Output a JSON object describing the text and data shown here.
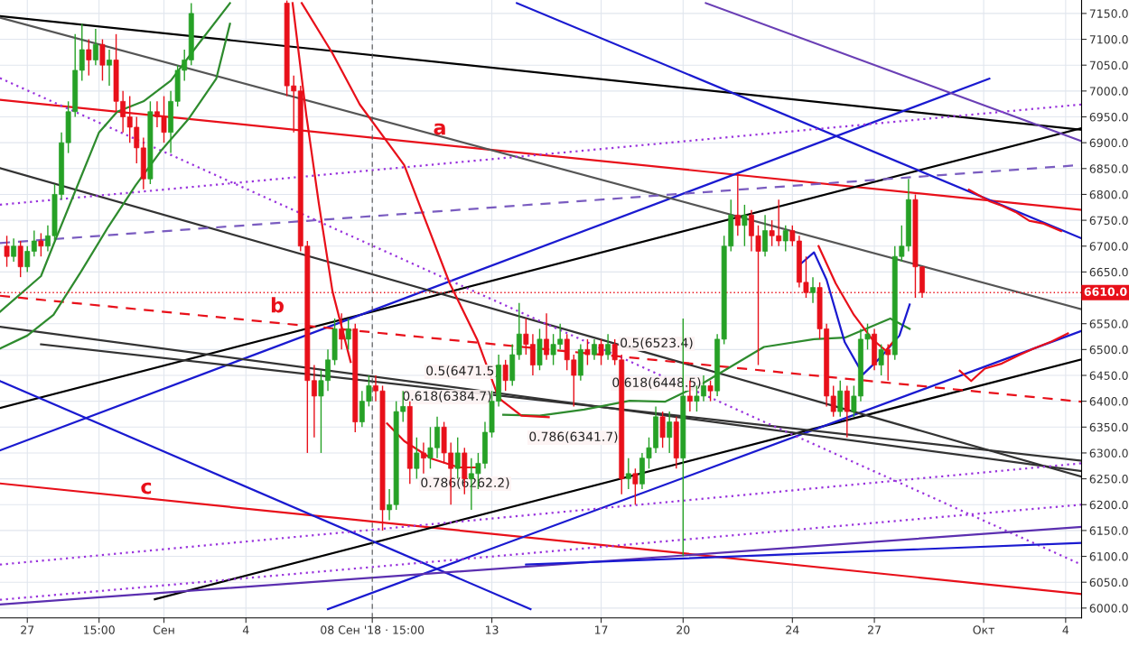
{
  "chart_data": {
    "type": "candlestick",
    "x": [
      "2018-08-26T06:00",
      "2018-08-26T12:00",
      "2018-08-26T18:00",
      "2018-08-27T00:00",
      "2018-08-27T06:00",
      "2018-08-27T12:00",
      "2018-08-27T18:00",
      "2018-08-28T00:00",
      "2018-08-28T06:00",
      "2018-08-28T12:00",
      "2018-08-28T18:00",
      "2018-08-29T00:00",
      "2018-08-29T06:00",
      "2018-08-29T12:00",
      "2018-08-29T18:00",
      "2018-08-30T00:00",
      "2018-08-30T06:00",
      "2018-08-30T12:00",
      "2018-08-30T18:00",
      "2018-08-31T00:00",
      "2018-08-31T06:00",
      "2018-08-31T12:00",
      "2018-08-31T18:00",
      "2018-09-01T00:00",
      "2018-09-01T06:00",
      "2018-09-01T12:00",
      "2018-09-01T18:00",
      "2018-09-02T00:00",
      "2018-09-05T12:00",
      "2018-09-05T18:00",
      "2018-09-06T00:00",
      "2018-09-06T06:00",
      "2018-09-06T12:00",
      "2018-09-06T18:00",
      "2018-09-07T00:00",
      "2018-09-07T06:00",
      "2018-09-07T12:00",
      "2018-09-07T18:00",
      "2018-09-08T00:00",
      "2018-09-08T06:00",
      "2018-09-08T12:00",
      "2018-09-08T18:00",
      "2018-09-09T00:00",
      "2018-09-09T06:00",
      "2018-09-09T12:00",
      "2018-09-09T18:00",
      "2018-09-10T00:00",
      "2018-09-10T06:00",
      "2018-09-10T12:00",
      "2018-09-10T18:00",
      "2018-09-11T00:00",
      "2018-09-11T06:00",
      "2018-09-11T12:00",
      "2018-09-11T18:00",
      "2018-09-12T00:00",
      "2018-09-12T06:00",
      "2018-09-12T12:00",
      "2018-09-12T18:00",
      "2018-09-13T00:00",
      "2018-09-13T06:00",
      "2018-09-13T12:00",
      "2018-09-13T18:00",
      "2018-09-14T00:00",
      "2018-09-14T06:00",
      "2018-09-14T12:00",
      "2018-09-14T18:00",
      "2018-09-15T00:00",
      "2018-09-15T06:00",
      "2018-09-15T12:00",
      "2018-09-15T18:00",
      "2018-09-16T00:00",
      "2018-09-16T06:00",
      "2018-09-16T12:00",
      "2018-09-16T18:00",
      "2018-09-17T00:00",
      "2018-09-17T06:00",
      "2018-09-17T12:00",
      "2018-09-17T18:00",
      "2018-09-18T00:00",
      "2018-09-18T06:00",
      "2018-09-18T12:00",
      "2018-09-18T18:00",
      "2018-09-19T00:00",
      "2018-09-19T06:00",
      "2018-09-19T12:00",
      "2018-09-19T18:00",
      "2018-09-20T00:00",
      "2018-09-20T06:00",
      "2018-09-20T12:00",
      "2018-09-20T18:00",
      "2018-09-21T00:00",
      "2018-09-21T06:00",
      "2018-09-21T12:00",
      "2018-09-21T18:00",
      "2018-09-22T00:00",
      "2018-09-22T06:00",
      "2018-09-22T12:00",
      "2018-09-22T18:00",
      "2018-09-23T00:00",
      "2018-09-23T06:00",
      "2018-09-23T12:00",
      "2018-09-23T18:00",
      "2018-09-24T00:00",
      "2018-09-24T06:00",
      "2018-09-24T12:00",
      "2018-09-24T18:00",
      "2018-09-25T00:00",
      "2018-09-25T06:00",
      "2018-09-25T12:00",
      "2018-09-25T18:00",
      "2018-09-26T00:00",
      "2018-09-26T06:00",
      "2018-09-26T12:00",
      "2018-09-26T18:00",
      "2018-09-27T00:00",
      "2018-09-27T06:00",
      "2018-09-27T12:00",
      "2018-09-27T18:00",
      "2018-09-28T00:00",
      "2018-09-28T06:00",
      "2018-09-28T12:00",
      "2018-09-28T18:00"
    ],
    "ohlc": [
      [
        6700,
        6720,
        6660,
        6680
      ],
      [
        6680,
        6715,
        6670,
        6700
      ],
      [
        6700,
        6710,
        6640,
        6660
      ],
      [
        6660,
        6700,
        6650,
        6690
      ],
      [
        6690,
        6730,
        6680,
        6710
      ],
      [
        6710,
        6725,
        6680,
        6700
      ],
      [
        6700,
        6740,
        6690,
        6720
      ],
      [
        6720,
        6820,
        6710,
        6800
      ],
      [
        6800,
        6920,
        6790,
        6900
      ],
      [
        6900,
        6980,
        6880,
        6960
      ],
      [
        6960,
        7110,
        6950,
        7040
      ],
      [
        7040,
        7130,
        7020,
        7080
      ],
      [
        7080,
        7100,
        7030,
        7060
      ],
      [
        7060,
        7120,
        7050,
        7090
      ],
      [
        7090,
        7100,
        7020,
        7050
      ],
      [
        7050,
        7080,
        7010,
        7060
      ],
      [
        7060,
        7110,
        6960,
        6980
      ],
      [
        6980,
        7000,
        6920,
        6950
      ],
      [
        6950,
        6990,
        6900,
        6930
      ],
      [
        6930,
        6950,
        6860,
        6890
      ],
      [
        6890,
        6910,
        6810,
        6830
      ],
      [
        6830,
        6980,
        6820,
        6960
      ],
      [
        6960,
        6980,
        6930,
        6950
      ],
      [
        6950,
        6990,
        6900,
        6920
      ],
      [
        6920,
        7000,
        6880,
        6980
      ],
      [
        6980,
        7050,
        6970,
        7040
      ],
      [
        7040,
        7080,
        7020,
        7060
      ],
      [
        7060,
        7170,
        7050,
        7150
      ],
      [
        7170,
        7175,
        6990,
        7010
      ],
      [
        7010,
        7030,
        6920,
        7000
      ],
      [
        7000,
        7010,
        6690,
        6700
      ],
      [
        6700,
        6710,
        6300,
        6440
      ],
      [
        6440,
        6470,
        6330,
        6410
      ],
      [
        6410,
        6460,
        6300,
        6440
      ],
      [
        6440,
        6500,
        6420,
        6480
      ],
      [
        6480,
        6560,
        6470,
        6540
      ],
      [
        6540,
        6570,
        6500,
        6520
      ],
      [
        6520,
        6560,
        6500,
        6540
      ],
      [
        6540,
        6550,
        6340,
        6360
      ],
      [
        6360,
        6420,
        6350,
        6400
      ],
      [
        6400,
        6450,
        6390,
        6430
      ],
      [
        6430,
        6450,
        6400,
        6420
      ],
      [
        6420,
        6430,
        6150,
        6190
      ],
      [
        6190,
        6230,
        6170,
        6200
      ],
      [
        6200,
        6400,
        6190,
        6380
      ],
      [
        6380,
        6420,
        6360,
        6390
      ],
      [
        6390,
        6400,
        6240,
        6270
      ],
      [
        6270,
        6330,
        6250,
        6300
      ],
      [
        6300,
        6320,
        6260,
        6290
      ],
      [
        6290,
        6350,
        6270,
        6310
      ],
      [
        6310,
        6370,
        6290,
        6350
      ],
      [
        6350,
        6360,
        6280,
        6300
      ],
      [
        6300,
        6320,
        6200,
        6270
      ],
      [
        6270,
        6330,
        6250,
        6300
      ],
      [
        6300,
        6310,
        6220,
        6250
      ],
      [
        6250,
        6290,
        6190,
        6260
      ],
      [
        6260,
        6300,
        6230,
        6280
      ],
      [
        6280,
        6360,
        6270,
        6340
      ],
      [
        6340,
        6420,
        6330,
        6400
      ],
      [
        6400,
        6490,
        6390,
        6470
      ],
      [
        6470,
        6480,
        6420,
        6440
      ],
      [
        6440,
        6510,
        6430,
        6490
      ],
      [
        6490,
        6590,
        6480,
        6530
      ],
      [
        6530,
        6560,
        6490,
        6510
      ],
      [
        6510,
        6530,
        6450,
        6470
      ],
      [
        6470,
        6540,
        6460,
        6520
      ],
      [
        6520,
        6570,
        6480,
        6490
      ],
      [
        6490,
        6530,
        6470,
        6510
      ],
      [
        6510,
        6550,
        6500,
        6520
      ],
      [
        6520,
        6530,
        6460,
        6480
      ],
      [
        6480,
        6490,
        6390,
        6450
      ],
      [
        6450,
        6510,
        6440,
        6500
      ],
      [
        6500,
        6520,
        6470,
        6490
      ],
      [
        6490,
        6520,
        6480,
        6510
      ],
      [
        6510,
        6520,
        6470,
        6490
      ],
      [
        6490,
        6530,
        6480,
        6510
      ],
      [
        6510,
        6520,
        6470,
        6480
      ],
      [
        6480,
        6490,
        6220,
        6250
      ],
      [
        6250,
        6290,
        6230,
        6260
      ],
      [
        6260,
        6270,
        6200,
        6240
      ],
      [
        6240,
        6300,
        6230,
        6290
      ],
      [
        6290,
        6330,
        6270,
        6310
      ],
      [
        6310,
        6390,
        6300,
        6370
      ],
      [
        6370,
        6380,
        6310,
        6330
      ],
      [
        6330,
        6380,
        6300,
        6360
      ],
      [
        6360,
        6370,
        6270,
        6290
      ],
      [
        6290,
        6560,
        6100,
        6410
      ],
      [
        6410,
        6440,
        6380,
        6400
      ],
      [
        6400,
        6430,
        6380,
        6410
      ],
      [
        6410,
        6450,
        6400,
        6430
      ],
      [
        6430,
        6440,
        6400,
        6420
      ],
      [
        6420,
        6530,
        6410,
        6520
      ],
      [
        6520,
        6720,
        6510,
        6700
      ],
      [
        6700,
        6790,
        6690,
        6760
      ],
      [
        6760,
        6840,
        6720,
        6740
      ],
      [
        6740,
        6780,
        6700,
        6760
      ],
      [
        6760,
        6770,
        6690,
        6720
      ],
      [
        6720,
        6740,
        6470,
        6690
      ],
      [
        6690,
        6760,
        6680,
        6730
      ],
      [
        6730,
        6750,
        6700,
        6720
      ],
      [
        6720,
        6790,
        6700,
        6710
      ],
      [
        6710,
        6740,
        6690,
        6730
      ],
      [
        6730,
        6740,
        6700,
        6710
      ],
      [
        6710,
        6720,
        6620,
        6630
      ],
      [
        6630,
        6680,
        6600,
        6610
      ],
      [
        6610,
        6640,
        6590,
        6620
      ],
      [
        6620,
        6630,
        6520,
        6540
      ],
      [
        6540,
        6550,
        6390,
        6410
      ],
      [
        6410,
        6430,
        6370,
        6380
      ],
      [
        6380,
        6440,
        6370,
        6420
      ],
      [
        6420,
        6430,
        6330,
        6380
      ],
      [
        6380,
        6430,
        6370,
        6410
      ],
      [
        6410,
        6540,
        6400,
        6520
      ],
      [
        6520,
        6550,
        6500,
        6530
      ],
      [
        6530,
        6540,
        6460,
        6470
      ],
      [
        6470,
        6510,
        6450,
        6500
      ],
      [
        6500,
        6510,
        6440,
        6490
      ],
      [
        6490,
        6700,
        6480,
        6680
      ],
      [
        6680,
        6740,
        6670,
        6700
      ],
      [
        6700,
        6830,
        6690,
        6790
      ],
      [
        6790,
        6800,
        6600,
        6660
      ],
      [
        6660,
        6660,
        6600,
        6610
      ]
    ],
    "colors": [
      "#e8101a",
      "#26a126",
      "#e8101a",
      "#26a126",
      "#26a126",
      "#e8101a",
      "#26a126",
      "#26a126",
      "#26a126",
      "#26a126",
      "#26a126",
      "#26a126",
      "#e8101a",
      "#26a126",
      "#e8101a",
      "#26a126",
      "#e8101a",
      "#e8101a",
      "#e8101a",
      "#e8101a",
      "#e8101a",
      "#26a126",
      "#e8101a",
      "#e8101a",
      "#26a126",
      "#26a126",
      "#26a126",
      "#26a126",
      "#e8101a",
      "#e8101a",
      "#e8101a",
      "#e8101a",
      "#e8101a",
      "#26a126",
      "#26a126",
      "#26a126",
      "#e8101a",
      "#26a126",
      "#e8101a",
      "#26a126",
      "#26a126",
      "#e8101a",
      "#e8101a",
      "#26a126",
      "#26a126",
      "#26a126",
      "#e8101a",
      "#26a126",
      "#e8101a",
      "#26a126",
      "#26a126",
      "#e8101a",
      "#e8101a",
      "#26a126",
      "#e8101a",
      "#26a126",
      "#26a126",
      "#26a126",
      "#26a126",
      "#26a126",
      "#e8101a",
      "#26a126",
      "#26a126",
      "#e8101a",
      "#e8101a",
      "#26a126",
      "#e8101a",
      "#26a126",
      "#26a126",
      "#e8101a",
      "#e8101a",
      "#26a126",
      "#e8101a",
      "#26a126",
      "#e8101a",
      "#26a126",
      "#e8101a",
      "#e8101a",
      "#26a126",
      "#e8101a",
      "#26a126",
      "#26a126",
      "#26a126",
      "#e8101a",
      "#26a126",
      "#e8101a",
      "#26a126",
      "#e8101a",
      "#26a126",
      "#26a126",
      "#e8101a",
      "#26a126",
      "#26a126",
      "#26a126",
      "#e8101a",
      "#26a126",
      "#e8101a",
      "#e8101a",
      "#26a126",
      "#e8101a",
      "#e8101a",
      "#26a126",
      "#e8101a",
      "#e8101a",
      "#e8101a",
      "#26a126",
      "#e8101a",
      "#e8101a",
      "#e8101a",
      "#26a126",
      "#e8101a",
      "#26a126",
      "#26a126",
      "#26a126",
      "#e8101a",
      "#26a126",
      "#e8101a",
      "#26a126",
      "#26a126",
      "#26a126",
      "#e8101a",
      "#e8101a"
    ],
    "series": [
      {
        "type": "line",
        "color": "#000000",
        "x": [
          "2018-08-26T00:00",
          "2018-10-04T14:00"
        ],
        "values": [
          7145,
          6925
        ]
      },
      {
        "type": "line",
        "color": "#e8101a",
        "x": [
          "2018-08-26T00:00",
          "2018-10-04T14:00"
        ],
        "values": [
          6983,
          6770
        ]
      },
      {
        "type": "line",
        "color": "#e8101a",
        "x": [
          "2018-08-26T00:00",
          "2018-10-04T14:00"
        ],
        "values": [
          6241,
          6027
        ]
      },
      {
        "type": "line",
        "color": "#000000",
        "x": [
          "2018-08-26T00:00",
          "2018-10-04T14:00"
        ],
        "values": [
          6387,
          6928
        ]
      },
      {
        "type": "line",
        "color": "#000000",
        "x": [
          "2018-08-31T16:00",
          "2018-10-04T14:00"
        ],
        "values": [
          6017,
          6481
        ]
      },
      {
        "type": "line",
        "color": "#1a1ad0",
        "x": [
          "2018-08-26T00:00",
          "2018-10-01T05:00"
        ],
        "values": [
          6305,
          7024
        ]
      },
      {
        "type": "line",
        "color": "#1a1ad0",
        "x": [
          "2018-09-07T00:00",
          "2018-10-04T14:00"
        ],
        "values": [
          5998,
          6536
        ]
      },
      {
        "type": "line",
        "color": "#1a1ad0",
        "x": [
          "2018-09-13T22:00",
          "2018-10-04T14:00"
        ],
        "values": [
          7170,
          6715
        ]
      },
      {
        "type": "line",
        "color": "#1a1ad0",
        "x": [
          "2018-08-26T00:00",
          "2018-09-14T10:00"
        ],
        "values": [
          6439,
          5998
        ]
      },
      {
        "type": "line",
        "color": "#6a3fb5",
        "x": [
          "2018-09-20T20:00",
          "2018-10-04T14:00"
        ],
        "values": [
          7170,
          6903
        ]
      },
      {
        "type": "line",
        "color": "#555555",
        "x": [
          "2018-08-26T00:00",
          "2018-10-04T14:00"
        ],
        "values": [
          7142,
          6578
        ]
      },
      {
        "type": "line",
        "color": "#333333",
        "x": [
          "2018-08-26T00:00",
          "2018-10-04T14:00"
        ],
        "values": [
          6851,
          6254
        ]
      },
      {
        "type": "line",
        "color": "#333333",
        "x": [
          "2018-08-27T12:00",
          "2018-10-04T14:00"
        ],
        "values": [
          6510,
          6285
        ]
      },
      {
        "type": "line",
        "color": "#333333",
        "x": [
          "2018-08-26T00:00",
          "2018-10-04T14:00"
        ],
        "values": [
          6544,
          6265
        ]
      },
      {
        "type": "line",
        "color": "#e8101a",
        "line_style": "dashed",
        "x": [
          "2018-08-26T00:00",
          "2018-10-04T14:00"
        ],
        "values": [
          6604,
          6399
        ]
      },
      {
        "type": "line",
        "color": "#7a5cc0",
        "line_style": "dashed",
        "x": [
          "2018-08-26T00:00",
          "2018-10-04T14:00"
        ],
        "values": [
          6706,
          6857
        ]
      },
      {
        "type": "line",
        "color": "#9933dd",
        "line_style": "dotted",
        "x": [
          "2018-08-26T00:00",
          "2018-10-04T14:00"
        ],
        "values": [
          7025,
          6084
        ]
      },
      {
        "type": "line",
        "color": "#9933dd",
        "line_style": "dotted",
        "x": [
          "2018-08-26T00:00",
          "2018-10-04T14:00"
        ],
        "values": [
          6780,
          6974
        ]
      },
      {
        "type": "line",
        "color": "#9933dd",
        "line_style": "dotted",
        "x": [
          "2018-08-26T00:00",
          "2018-10-04T14:00"
        ],
        "values": [
          6084,
          6280
        ]
      },
      {
        "type": "line",
        "color": "#9933dd",
        "line_style": "dotted",
        "x": [
          "2018-08-26T00:00",
          "2018-10-04T14:00"
        ],
        "values": [
          6016,
          6200
        ]
      },
      {
        "type": "line",
        "color": "#5b2fb0",
        "x": [
          "2018-08-26T00:00",
          "2018-10-04T14:00"
        ],
        "values": [
          6007,
          6157
        ]
      },
      {
        "type": "line",
        "color": "#1a1ad0",
        "x": [
          "2018-09-14T06:00",
          "2018-10-04T14:00"
        ],
        "values": [
          6084,
          6126
        ]
      },
      {
        "type": "line",
        "color": "#2e8b2e",
        "x": [
          "2018-08-26T00:00",
          "2018-08-27T00:00",
          "2018-08-27T23:00",
          "2018-08-28T23:00",
          "2018-08-29T23:00",
          "2018-08-30T23:00",
          "2018-08-31T22:00",
          "2018-09-01T22:00",
          "2018-09-02T22:00",
          "2018-09-03T10:00",
          "2018-09-08T00:00",
          "2018-09-13T10:00",
          "2018-09-14T18:00",
          "2018-09-16T09:00",
          "2018-09-18T01:00",
          "2018-09-19T08:00",
          "2018-09-20T16:00",
          "2018-09-22T23:00",
          "2018-09-24T19:00",
          "2018-09-25T22:00",
          "2018-09-27T14:00",
          "2018-09-28T07:00"
        ],
        "values": [
          6502,
          6527,
          6567,
          6650,
          6737,
          6817,
          6886,
          6947,
          7024,
          7130,
          null,
          6374,
          6372,
          6384,
          6401,
          6399,
          6433,
          6505,
          6520,
          6523,
          6560,
          6540
        ]
      },
      {
        "type": "line",
        "color": "#2e8b2e",
        "x": [
          "2018-08-26T00:00",
          "2018-08-27T12:00",
          "2018-08-27T23:00",
          "2018-08-28T23:00",
          "2018-08-29T15:00",
          "2018-08-30T07:00",
          "2018-08-31T06:00",
          "2018-09-01T06:00",
          "2018-09-02T06:00",
          "2018-09-03T10:00"
        ],
        "values": [
          6573,
          6642,
          6703,
          6833,
          6920,
          6960,
          6980,
          7020,
          7090,
          7170
        ]
      },
      {
        "type": "line",
        "color": "#e8101a",
        "x": [
          "2018-09-06T01:00",
          "2018-09-07T04:00",
          "2018-09-08T04:00",
          "2018-09-09T19:00",
          "2018-09-11T11:00",
          "2018-09-12T11:00",
          "2018-09-13T06:00",
          "2018-09-14T02:00",
          "2018-09-15T02:00"
        ],
        "values": [
          7170,
          7073,
          6974,
          6857,
          6628,
          6520,
          6406,
          6372,
          6369
        ]
      },
      {
        "type": "line",
        "color": "#e8101a",
        "x": [
          "2018-09-05T17:00",
          "2018-09-06T05:00",
          "2018-09-06T16:00",
          "2018-09-07T04:00",
          "2018-09-07T20:00",
          "2018-09-08T12:00",
          "2018-09-09T04:00",
          "2018-09-09T19:00",
          "2018-09-10T19:00",
          "2018-09-11T19:00",
          "2018-09-12T11:00"
        ],
        "values": [
          7170,
          6954,
          6783,
          6613,
          6476,
          null,
          6357,
          6323,
          6289,
          6272,
          6272
        ]
      },
      {
        "type": "line",
        "color": "#1a1ad0",
        "x": [
          "2018-09-24T07:00",
          "2018-09-24T19:00",
          "2018-09-25T06:00",
          "2018-09-25T22:00",
          "2018-09-26T14:00",
          "2018-09-27T06:00",
          "2018-09-27T22:00",
          "2018-09-28T07:00"
        ],
        "values": [
          6665,
          6688,
          6635,
          6514,
          6452,
          6486,
          6527,
          6587
        ]
      },
      {
        "type": "line",
        "color": "#e8101a",
        "x": [
          "2018-09-24T23:00",
          "2018-09-25T14:00",
          "2018-09-26T06:00",
          "2018-09-26T22:00",
          "2018-09-27T10:00",
          "2018-09-27T18:00"
        ],
        "values": [
          6700,
          6628,
          6567,
          6520,
          6498,
          6519
        ]
      },
      {
        "type": "line",
        "color": "#e8101a",
        "x": [
          "2018-09-30T11:00",
          "2018-09-30T21:00",
          "2018-10-01T05:00",
          "2018-10-01T16:00",
          "2018-10-02T04:00",
          "2018-10-02T16:00",
          "2018-10-03T04:00",
          "2018-10-03T20:00"
        ],
        "values": [
          6809,
          6797,
          6787,
          6778,
          6766,
          6749,
          6744,
          6729
        ]
      },
      {
        "type": "line",
        "color": "#e8101a",
        "x": [
          "2018-09-30T03:00",
          "2018-09-30T13:00",
          "2018-10-01T01:00",
          "2018-10-01T16:00",
          "2018-10-02T08:00",
          "2018-10-02T20:00",
          "2018-10-03T12:00",
          "2018-10-04T02:00"
        ],
        "values": [
          6459,
          6439,
          6463,
          6473,
          6490,
          6502,
          6516,
          6531
        ]
      }
    ],
    "ref_lines": [
      {
        "axis": "y",
        "value": 6610,
        "label": "6610.0",
        "color": "#e8101a",
        "line_style": "dotted"
      },
      {
        "axis": "x",
        "value": "2018-09-08T15:00",
        "color": "#555555",
        "line_style": "dashed"
      }
    ],
    "annotations": [
      "a",
      "b",
      "c",
      "0.5(6471.5)",
      "0.618(6384.7)",
      "0.786(6262.2)",
      "0.5(6523.4)",
      "0.618(6448.5)",
      "0.786(6341.7)"
    ],
    "xlim": [
      "2018-08-26T00:00",
      "2018-10-04T14:00"
    ],
    "ylim": [
      5981,
      7176
    ],
    "xticks": [
      {
        "value": "2018-08-27",
        "label": "27"
      },
      {
        "value": "2018-08-29T15:00",
        "label": "15:00"
      },
      {
        "value": "2018-09-01",
        "label": "Сен"
      },
      {
        "value": "2018-09-04",
        "label": "4"
      },
      {
        "value": "2018-09-08T15:00",
        "label": "08 Сен '18 · 15:00"
      },
      {
        "value": "2018-09-13",
        "label": "13"
      },
      {
        "value": "2018-09-17",
        "label": "17"
      },
      {
        "value": "2018-09-20",
        "label": "20"
      },
      {
        "value": "2018-09-24",
        "label": "24"
      },
      {
        "value": "2018-09-27",
        "label": "27"
      },
      {
        "value": "2018-10-01",
        "label": "Окт"
      },
      {
        "value": "2018-10-04",
        "label": "4"
      }
    ],
    "yticks": [
      {
        "value": 6000,
        "label": "6000.0"
      },
      {
        "value": 6050,
        "label": "6050.0"
      },
      {
        "value": 6100,
        "label": "6100.0"
      },
      {
        "value": 6150,
        "label": "6150.0"
      },
      {
        "value": 6200,
        "label": "6200.0"
      },
      {
        "value": 6250,
        "label": "6250.0"
      },
      {
        "value": 6300,
        "label": "6300.0"
      },
      {
        "value": 6350,
        "label": "6350.0"
      },
      {
        "value": 6400,
        "label": "6400.0"
      },
      {
        "value": 6450,
        "label": "6450.0"
      },
      {
        "value": 6500,
        "label": "6500.0"
      },
      {
        "value": 6550,
        "label": "6550.0"
      },
      {
        "value": 6600,
        "label": null
      },
      {
        "value": 6650,
        "label": "6650.0"
      },
      {
        "value": 6700,
        "label": "6700.0"
      },
      {
        "value": 6750,
        "label": "6750.0"
      },
      {
        "value": 6800,
        "label": "6800.0"
      },
      {
        "value": 6850,
        "label": "6850.0"
      },
      {
        "value": 6900,
        "label": "6900.0"
      },
      {
        "value": 6950,
        "label": "6950.0"
      },
      {
        "value": 7000,
        "label": "7000.0"
      },
      {
        "value": 7050,
        "label": "7050.0"
      },
      {
        "value": 7100,
        "label": "7100.0"
      },
      {
        "value": 7150,
        "label": "7150.0"
      }
    ],
    "grid": true
  }
}
